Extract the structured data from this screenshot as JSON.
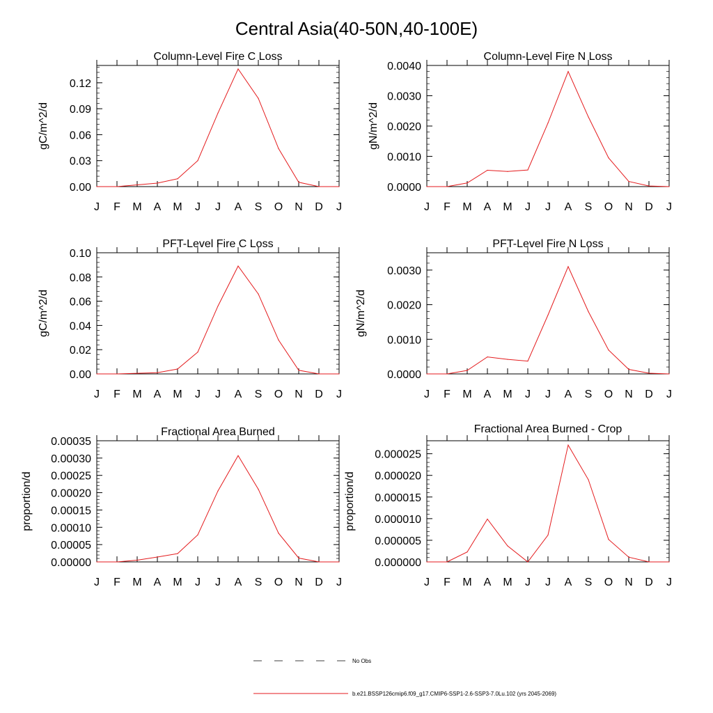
{
  "title": "Central Asia(40-50N,40-100E)",
  "chart_data": [
    {
      "type": "line",
      "title": "Column-Level Fire C Loss",
      "ylabel": "gC/m^2/d",
      "categories": [
        "J",
        "F",
        "M",
        "A",
        "M",
        "J",
        "J",
        "A",
        "S",
        "O",
        "N",
        "D",
        "J"
      ],
      "ylim": [
        0,
        0.14
      ],
      "yticks": [
        "0.00",
        "0.03",
        "0.06",
        "0.09",
        "0.12"
      ],
      "ytick_values": [
        0,
        0.03,
        0.06,
        0.09,
        0.12
      ],
      "series": [
        {
          "name": "b.e21.BSSP126cmip6.f09_g17.CMIP6-SSP1-2.6-SSP3-7.0Lu.102 (yrs 2045-2069)",
          "values": [
            0.0,
            0.0,
            0.002,
            0.004,
            0.009,
            0.03,
            0.085,
            0.136,
            0.102,
            0.044,
            0.005,
            0.0,
            0.0
          ]
        }
      ]
    },
    {
      "type": "line",
      "title": "Column-Level Fire N Loss",
      "ylabel": "gN/m^2/d",
      "categories": [
        "J",
        "F",
        "M",
        "A",
        "M",
        "J",
        "J",
        "A",
        "S",
        "O",
        "N",
        "D",
        "J"
      ],
      "ylim": [
        0,
        0.004
      ],
      "yticks": [
        "0.0000",
        "0.0010",
        "0.0020",
        "0.0030",
        "0.0040"
      ],
      "ytick_values": [
        0,
        0.001,
        0.002,
        0.003,
        0.004
      ],
      "series": [
        {
          "name": "b.e21.BSSP126cmip6.f09_g17.CMIP6-SSP1-2.6-SSP3-7.0Lu.102 (yrs 2045-2069)",
          "values": [
            0.0,
            0.0,
            0.00012,
            0.00054,
            0.0005,
            0.00055,
            0.0021,
            0.0038,
            0.0023,
            0.00095,
            0.00017,
            2e-05,
            0.0
          ]
        }
      ]
    },
    {
      "type": "line",
      "title": "PFT-Level Fire C Loss",
      "ylabel": "gC/m^2/d",
      "categories": [
        "J",
        "F",
        "M",
        "A",
        "M",
        "J",
        "J",
        "A",
        "S",
        "O",
        "N",
        "D",
        "J"
      ],
      "ylim": [
        0,
        0.1
      ],
      "yticks": [
        "0.00",
        "0.02",
        "0.04",
        "0.06",
        "0.08",
        "0.10"
      ],
      "ytick_values": [
        0,
        0.02,
        0.04,
        0.06,
        0.08,
        0.1
      ],
      "series": [
        {
          "name": "b.e21.BSSP126cmip6.f09_g17.CMIP6-SSP1-2.6-SSP3-7.0Lu.102 (yrs 2045-2069)",
          "values": [
            0.0,
            0.0,
            0.0005,
            0.001,
            0.004,
            0.018,
            0.056,
            0.089,
            0.066,
            0.028,
            0.003,
            0.0,
            0.0
          ]
        }
      ]
    },
    {
      "type": "line",
      "title": "PFT-Level Fire N Loss",
      "ylabel": "gN/m^2/d",
      "categories": [
        "J",
        "F",
        "M",
        "A",
        "M",
        "J",
        "J",
        "A",
        "S",
        "O",
        "N",
        "D",
        "J"
      ],
      "ylim": [
        0,
        0.0035
      ],
      "yticks": [
        "0.0000",
        "0.0010",
        "0.0020",
        "0.0030"
      ],
      "ytick_values": [
        0,
        0.001,
        0.002,
        0.003
      ],
      "series": [
        {
          "name": "b.e21.BSSP126cmip6.f09_g17.CMIP6-SSP1-2.6-SSP3-7.0Lu.102 (yrs 2045-2069)",
          "values": [
            0.0,
            0.0,
            0.0001,
            0.00049,
            0.00042,
            0.00037,
            0.0017,
            0.0031,
            0.0018,
            0.00069,
            0.00013,
            2e-05,
            0.0
          ]
        }
      ]
    },
    {
      "type": "line",
      "title": "Fractional Area Burned",
      "ylabel": "proportion/d",
      "categories": [
        "J",
        "F",
        "M",
        "A",
        "M",
        "J",
        "J",
        "A",
        "S",
        "O",
        "N",
        "D",
        "J"
      ],
      "ylim": [
        0,
        0.00035
      ],
      "yticks": [
        "0.00000",
        "0.00005",
        "0.00010",
        "0.00015",
        "0.00020",
        "0.00025",
        "0.00030",
        "0.00035"
      ],
      "ytick_values": [
        0,
        5e-05,
        0.0001,
        0.00015,
        0.0002,
        0.00025,
        0.0003,
        0.00035
      ],
      "series": [
        {
          "name": "b.e21.BSSP126cmip6.f09_g17.CMIP6-SSP1-2.6-SSP3-7.0Lu.102 (yrs 2045-2069)",
          "values": [
            0.0,
            0.0,
            5e-06,
            1.4e-05,
            2.4e-05,
            7.8e-05,
            0.000205,
            0.000307,
            0.00021,
            8.3e-05,
            1.1e-05,
            0.0,
            0.0
          ]
        }
      ]
    },
    {
      "type": "line",
      "title": "Fractional Area Burned - Crop",
      "ylabel": "proportion/d",
      "categories": [
        "J",
        "F",
        "M",
        "A",
        "M",
        "J",
        "J",
        "A",
        "S",
        "O",
        "N",
        "D",
        "J"
      ],
      "ylim": [
        0,
        2.8e-05
      ],
      "yticks": [
        "0.000000",
        "0.000005",
        "0.000010",
        "0.000015",
        "0.000020",
        "0.000025"
      ],
      "ytick_values": [
        0,
        5e-06,
        1e-05,
        1.5e-05,
        2e-05,
        2.5e-05
      ],
      "series": [
        {
          "name": "b.e21.BSSP126cmip6.f09_g17.CMIP6-SSP1-2.6-SSP3-7.0Lu.102 (yrs 2045-2069)",
          "values": [
            0.0,
            0.0,
            2.3e-06,
            9.9e-06,
            3.7e-06,
            0.0,
            6.2e-06,
            2.7e-05,
            1.9e-05,
            5.2e-06,
            1.1e-06,
            0.0,
            0.0
          ]
        }
      ]
    }
  ],
  "legend": [
    {
      "label": "No Obs",
      "style": "dashed",
      "color": "#000000"
    },
    {
      "label": "b.e21.BSSP126cmip6.f09_g17.CMIP6-SSP1-2.6-SSP3-7.0Lu.102 (yrs 2045-2069)",
      "style": "solid",
      "color": "#e41a1c"
    }
  ],
  "colors": {
    "series": "#e41a1c",
    "axis": "#000000"
  }
}
